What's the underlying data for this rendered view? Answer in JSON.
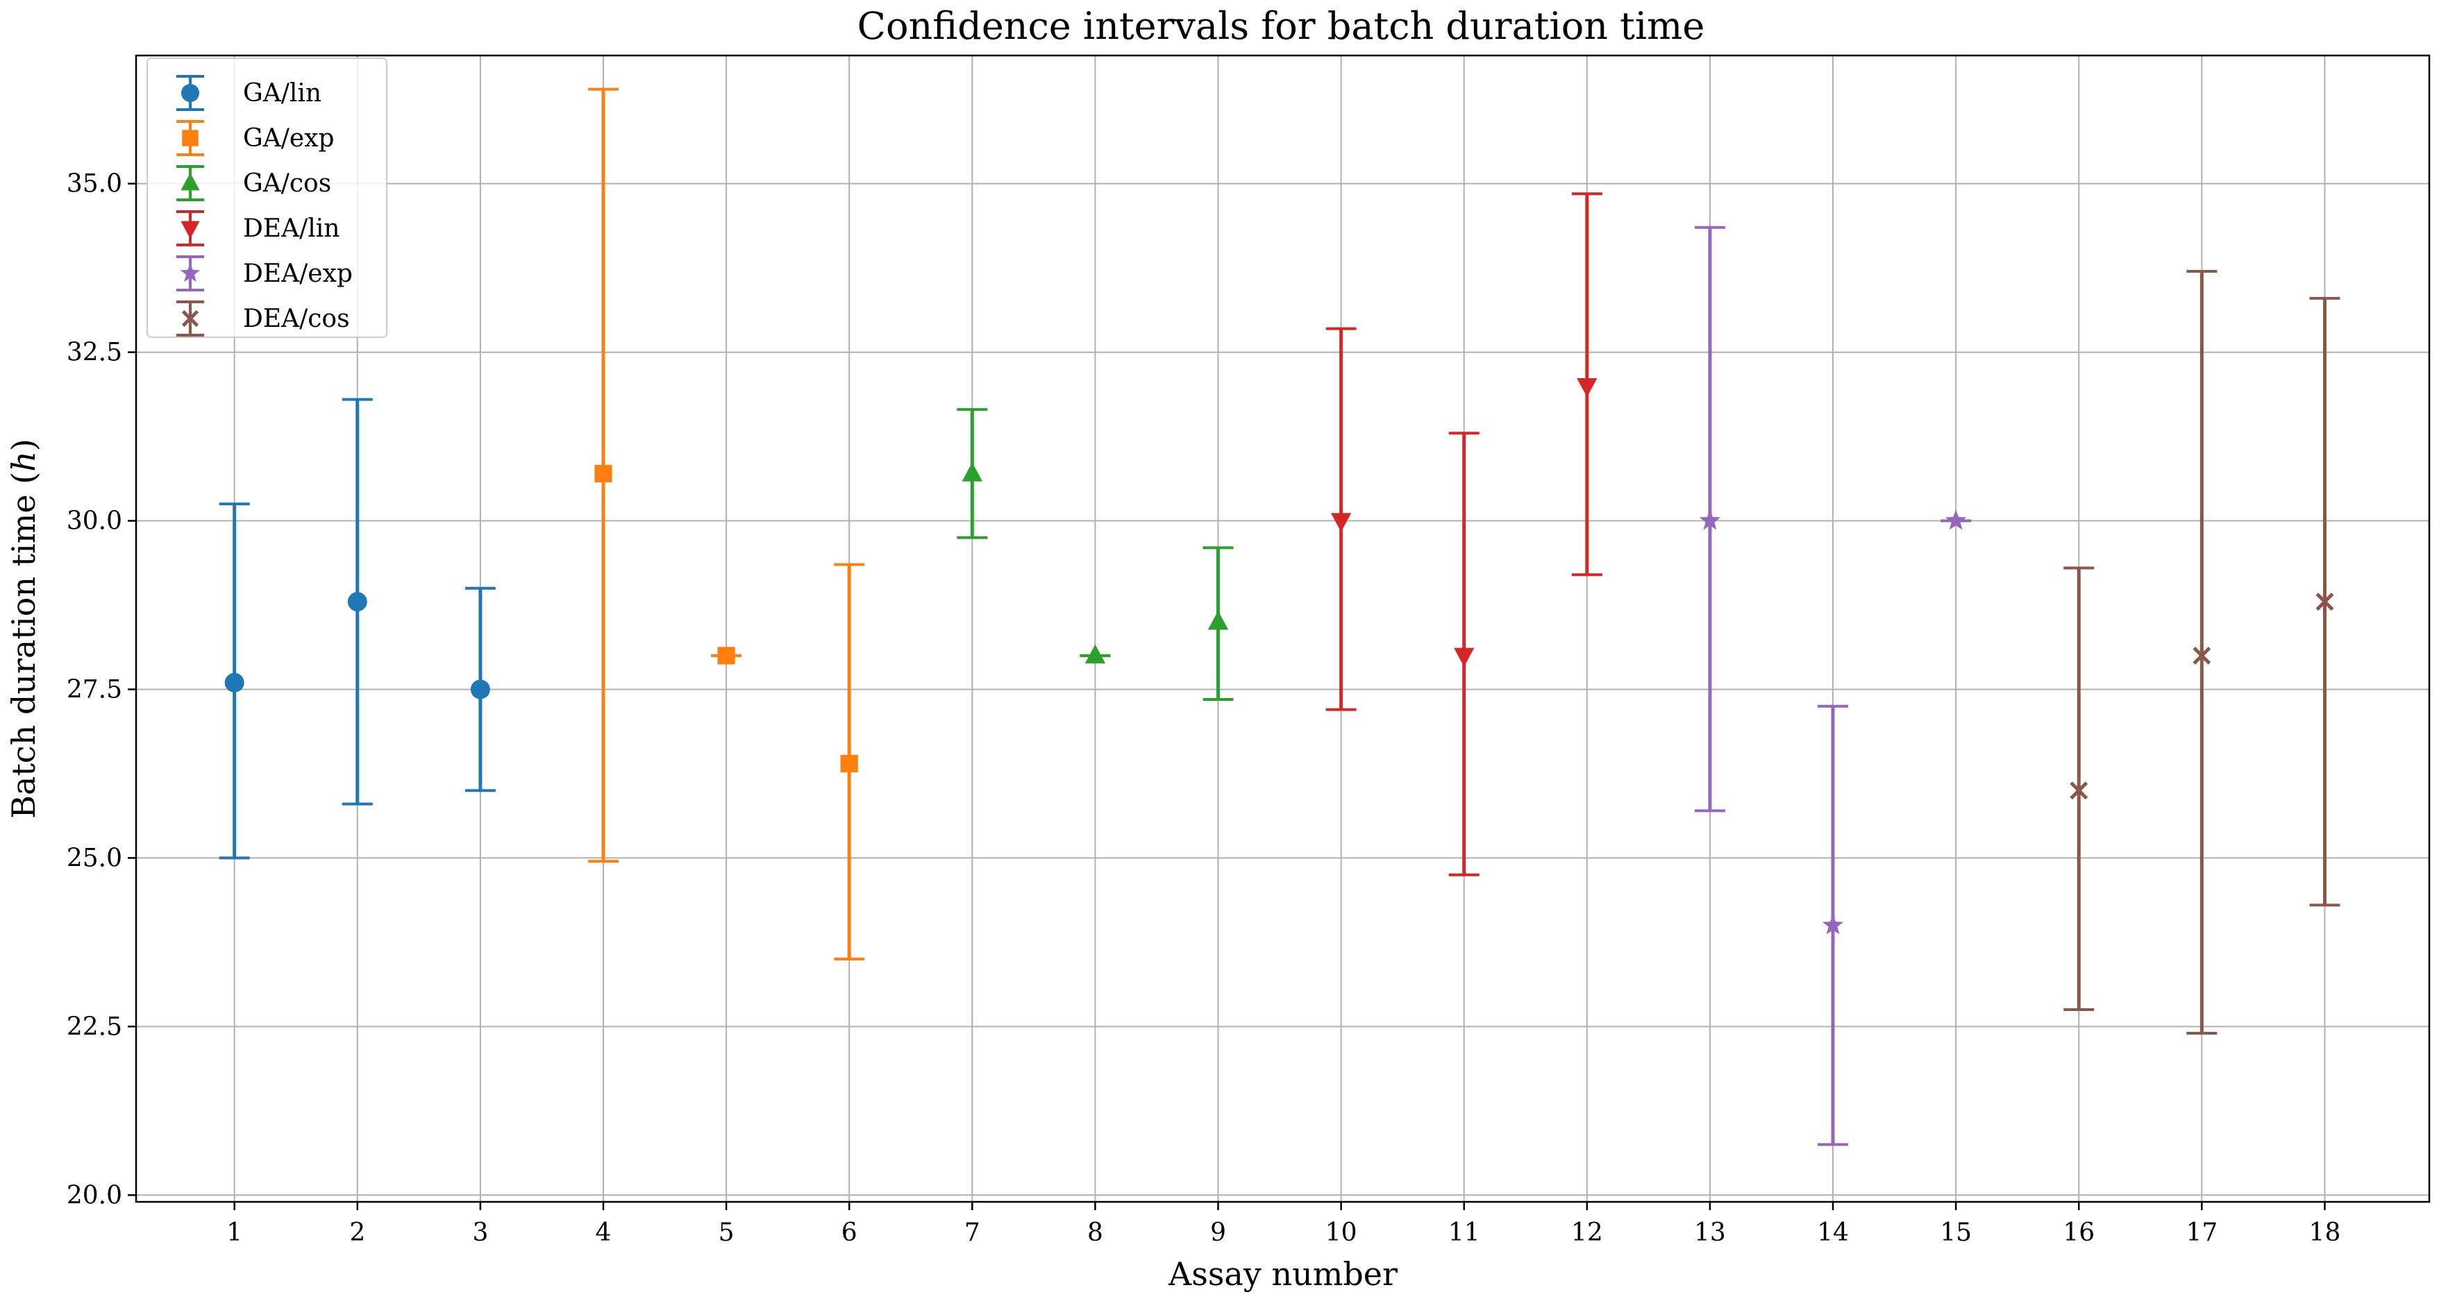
{
  "chart_data": {
    "type": "errorbar",
    "title": "Confidence intervals for batch duration time",
    "xlabel": "Assay number",
    "ylabel_main": "Batch duration time (",
    "ylabel_var": "h",
    "ylabel_end": ")",
    "ylim": [
      19.9,
      36.9
    ],
    "xlim": [
      0.2,
      18.85
    ],
    "yticks": [
      20.0,
      22.5,
      25.0,
      27.5,
      30.0,
      32.5,
      35.0
    ],
    "ytick_labels": [
      "20.0",
      "22.5",
      "25.0",
      "27.5",
      "30.0",
      "32.5",
      "35.0"
    ],
    "xticks": [
      1,
      2,
      3,
      4,
      5,
      6,
      7,
      8,
      9,
      10,
      11,
      12,
      13,
      14,
      15,
      16,
      17,
      18
    ],
    "xtick_labels": [
      "1",
      "2",
      "3",
      "4",
      "5",
      "6",
      "7",
      "8",
      "9",
      "10",
      "11",
      "12",
      "13",
      "14",
      "15",
      "16",
      "17",
      "18"
    ],
    "grid": true,
    "legend_position": "top-left",
    "series": [
      {
        "name": "GA/lin",
        "color": "#1f77b4",
        "marker": "circle",
        "points": [
          {
            "x": 1,
            "y": 27.6,
            "low": 25.0,
            "high": 30.25
          },
          {
            "x": 2,
            "y": 28.8,
            "low": 25.8,
            "high": 31.8
          },
          {
            "x": 3,
            "y": 27.5,
            "low": 26.0,
            "high": 29.0
          }
        ]
      },
      {
        "name": "GA/exp",
        "color": "#ff7f0e",
        "marker": "square",
        "points": [
          {
            "x": 4,
            "y": 30.7,
            "low": 24.95,
            "high": 36.4
          },
          {
            "x": 5,
            "y": 28.0,
            "low": 28.0,
            "high": 28.0
          },
          {
            "x": 6,
            "y": 26.4,
            "low": 23.5,
            "high": 29.35
          }
        ]
      },
      {
        "name": "GA/cos",
        "color": "#2ca02c",
        "marker": "triangle-up",
        "points": [
          {
            "x": 7,
            "y": 30.7,
            "low": 29.75,
            "high": 31.65
          },
          {
            "x": 8,
            "y": 28.0,
            "low": 28.0,
            "high": 28.0
          },
          {
            "x": 9,
            "y": 28.5,
            "low": 27.35,
            "high": 29.6
          }
        ]
      },
      {
        "name": "DEA/lin",
        "color": "#d62728",
        "marker": "triangle-down",
        "points": [
          {
            "x": 10,
            "y": 30.0,
            "low": 27.2,
            "high": 32.85
          },
          {
            "x": 11,
            "y": 28.0,
            "low": 24.75,
            "high": 31.3
          },
          {
            "x": 12,
            "y": 32.0,
            "low": 29.2,
            "high": 34.85
          }
        ]
      },
      {
        "name": "DEA/exp",
        "color": "#9467bd",
        "marker": "star",
        "points": [
          {
            "x": 13,
            "y": 30.0,
            "low": 25.7,
            "high": 34.35
          },
          {
            "x": 14,
            "y": 24.0,
            "low": 20.75,
            "high": 27.25
          },
          {
            "x": 15,
            "y": 30.0,
            "low": 30.0,
            "high": 30.0
          }
        ]
      },
      {
        "name": "DEA/cos",
        "color": "#8c564b",
        "marker": "x",
        "points": [
          {
            "x": 16,
            "y": 26.0,
            "low": 22.75,
            "high": 29.3
          },
          {
            "x": 17,
            "y": 28.0,
            "low": 22.4,
            "high": 33.7
          },
          {
            "x": 18,
            "y": 28.8,
            "low": 24.3,
            "high": 33.3
          }
        ]
      }
    ]
  }
}
